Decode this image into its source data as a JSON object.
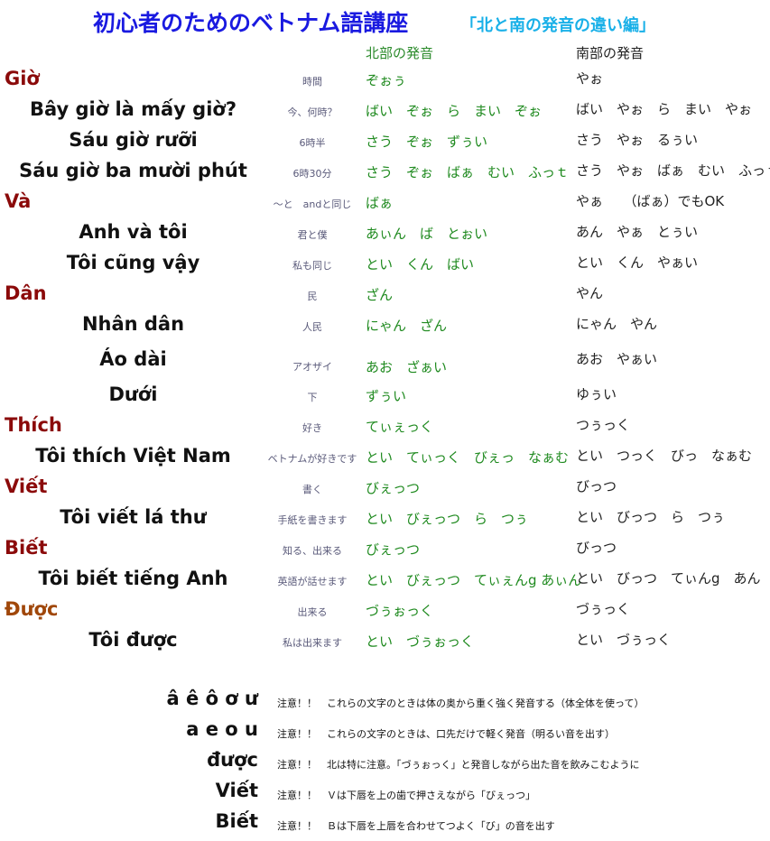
{
  "title": {
    "main": "初心者のためのベトナム語講座",
    "sub": "「北と南の発音の違い編」"
  },
  "headers": {
    "north": "北部の発音",
    "south": "南部の発音"
  },
  "rows": [
    {
      "vn": "Giờ",
      "kind": "head",
      "jp": "時間",
      "north": "ぞぉぅ",
      "south": "やぉ"
    },
    {
      "vn": "Bây giờ là mấy giờ?",
      "kind": "sub",
      "jp": "今、何時？",
      "north": "ばい　ぞぉ　ら　まい　ぞぉ",
      "south": "ばい　やぉ　ら　まい　やぉ"
    },
    {
      "vn": "Sáu giờ rưỡi",
      "kind": "sub",
      "jp": "6時半",
      "north": "さう　ぞぉ　ずぅい",
      "south": "さう　やぉ　るぅい"
    },
    {
      "vn": "Sáu giờ ba mười phút",
      "kind": "sub",
      "jp": "6時30分",
      "north": "さう　ぞぉ　ばぁ　むい　ふっｔ",
      "south": "さう　やぉ　ばぁ　むい　ふっｔ"
    },
    {
      "vn": "Và",
      "kind": "head",
      "jp": "～と　andと同じ",
      "north": "ばぁ",
      "south": "やぁ　　（ばぁ）でもOK"
    },
    {
      "vn": "Anh và tôi",
      "kind": "sub",
      "jp": "君と僕",
      "north": "あぃん　ば　とぉい",
      "south": "あん　やぁ　とぅい"
    },
    {
      "vn": "Tôi cũng vậy",
      "kind": "sub",
      "jp": "私も同じ",
      "north": "とい　くん　ばい",
      "south": "とい　くん　やぁい"
    },
    {
      "vn": "Dân",
      "kind": "head",
      "jp": "民",
      "north": "ざん",
      "south": "やん"
    },
    {
      "vn": "Nhân dân",
      "kind": "sub",
      "jp": "人民",
      "north": "にゃん　ざん",
      "south": "にゃん　やん"
    },
    {
      "vn": "Áo dài",
      "kind": "sub",
      "jp": "アオザイ",
      "north": "あお　ざぁい",
      "south": "あお　やぁい"
    },
    {
      "vn": "Dưới",
      "kind": "sub",
      "jp": "下",
      "north": "ずぅい",
      "south": "ゆぅい"
    },
    {
      "vn": "Thích",
      "kind": "head",
      "jp": "好き",
      "north": "てぃぇっく",
      "south": "つぅっく"
    },
    {
      "vn": "Tôi thích Việt Nam",
      "kind": "sub",
      "jp": "ベトナムが好きです",
      "north": "とい　てぃっく　びぇっ　なぁむ",
      "south": "とい　つっく　びっ　なぁむ"
    },
    {
      "vn": "Viết",
      "kind": "head",
      "jp": "書く",
      "north": "びぇっつ",
      "south": "びっつ"
    },
    {
      "vn": "Tôi viết lá thư",
      "kind": "sub",
      "jp": "手紙を書きます",
      "north": "とい　びぇっつ　ら　つぅ",
      "south": "とい　びっつ　ら　つぅ"
    },
    {
      "vn": "Biết",
      "kind": "head",
      "jp": "知る、出来る",
      "north": "びぇっつ",
      "south": "びっつ"
    },
    {
      "vn": "Tôi biết tiếng Anh",
      "kind": "sub",
      "jp": "英語が話せます",
      "north": "とい　びぇっつ　てぃぇんg あぃん",
      "south": "とい　びっつ　てぃんg　あん"
    },
    {
      "vn": "Được",
      "kind": "head-brown",
      "jp": "出来る",
      "north": "づぅぉっく",
      "south": "づぅっく"
    },
    {
      "vn": "Tôi được",
      "kind": "sub",
      "jp": "私は出来ます",
      "north": "とい　づぅぉっく",
      "south": "とい　づぅっく"
    }
  ],
  "notes": [
    {
      "letters": "â ê ô ơ ư",
      "text": "注意！！　これらの文字のときは体の奥から重く強く発音する（体全体を使って）"
    },
    {
      "letters": "a e o u",
      "text": "注意！！　これらの文字のときは、口先だけで軽く発音（明るい音を出す）"
    },
    {
      "letters": "được",
      "text": "注意！！　北は特に注意。「づぅぉっく」と発音しながら出た音を飲みこむように"
    },
    {
      "letters": "Viết",
      "text": "注意！！　Ｖは下唇を上の歯で押さえながら「びぇっつ」"
    },
    {
      "letters": "Biết",
      "text": "注意！！　Ｂは下唇を上唇を合わせてつよく「び」の音を出す"
    }
  ],
  "colors": {
    "title": "#1a1ae0",
    "subtitle": "#19b0e8",
    "heading_word": "#8b0a0a",
    "north_text": "#1f8a1f"
  }
}
